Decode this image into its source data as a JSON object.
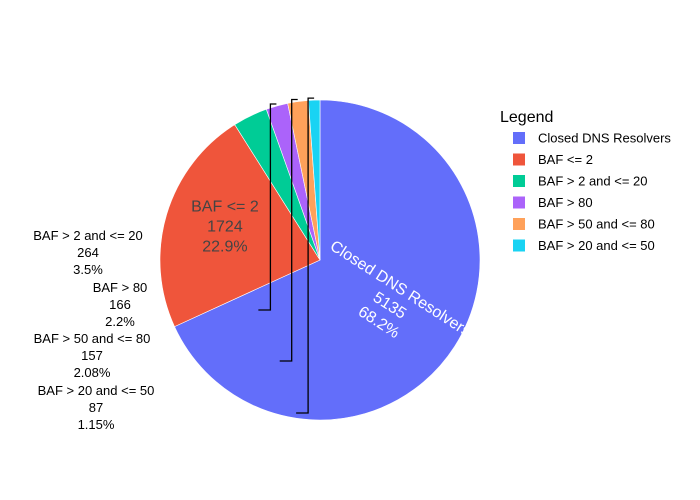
{
  "chart_data": {
    "type": "pie",
    "sort": "descending-clockwise-from-top",
    "legend": {
      "title": "Legend",
      "placement": "right"
    },
    "slices": [
      {
        "label": "Closed DNS Resolvers",
        "value": 5135,
        "percent": "68.2%",
        "color": "#636efa",
        "label_position": "inside",
        "label_color": "#ffffff"
      },
      {
        "label": "BAF <= 2",
        "value": 1724,
        "percent": "22.9%",
        "color": "#ef553b",
        "label_position": "inside",
        "label_color": "#444444"
      },
      {
        "label": "BAF > 2 and <= 20",
        "value": 264,
        "percent": "3.5%",
        "color": "#00cc96",
        "label_position": "outside",
        "label_color": "#000000"
      },
      {
        "label": "BAF > 80",
        "value": 166,
        "percent": "2.2%",
        "color": "#ab63fa",
        "label_position": "outside",
        "label_color": "#000000"
      },
      {
        "label": "BAF > 50 and <= 80",
        "value": 157,
        "percent": "2.08%",
        "color": "#ffa15a",
        "label_position": "outside",
        "label_color": "#000000"
      },
      {
        "label": "BAF > 20 and <= 50",
        "value": 87,
        "percent": "1.15%",
        "color": "#19d3f3",
        "label_position": "outside",
        "label_color": "#000000"
      }
    ]
  }
}
